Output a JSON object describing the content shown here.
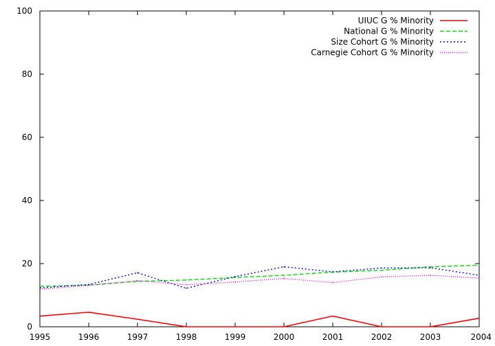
{
  "chart_data": {
    "type": "line",
    "title": "",
    "xlabel": "",
    "ylabel": "",
    "x": [
      1995,
      1996,
      1997,
      1998,
      1999,
      2000,
      2001,
      2002,
      2003,
      2004
    ],
    "xlim": [
      1995,
      2004
    ],
    "ylim": [
      0,
      100
    ],
    "xticks": [
      "1995",
      "1996",
      "1997",
      "1998",
      "1999",
      "2000",
      "2001",
      "2002",
      "2003",
      "2004"
    ],
    "yticks": [
      "0",
      "20",
      "40",
      "60",
      "80",
      "100"
    ],
    "grid": false,
    "legend_position": "top-right",
    "series": [
      {
        "name": "UIUC G % Minority",
        "color": "#ff0000",
        "dash": "solid",
        "values": [
          3.4,
          4.6,
          2.4,
          0,
          0,
          0,
          3.4,
          0,
          0,
          2.7
        ]
      },
      {
        "name": "National G % Minority",
        "color": "#00dd00",
        "dash": "dashed",
        "values": [
          12.8,
          13.2,
          14.4,
          14.8,
          15.6,
          16.3,
          17.3,
          17.9,
          19.0,
          19.5
        ]
      },
      {
        "name": "Size Cohort G % Minority",
        "color": "#0000ee",
        "dash": "dotted",
        "values": [
          12.3,
          13.4,
          17.1,
          12.2,
          15.9,
          19.0,
          17.4,
          18.6,
          18.7,
          16.3
        ]
      },
      {
        "name": "Carnegie Cohort G % Minority",
        "color": "#ff00ff",
        "dash": "fine-dotted",
        "values": [
          11.9,
          13.1,
          14.6,
          13.3,
          14.2,
          15.3,
          14.0,
          15.8,
          16.3,
          15.4
        ]
      }
    ]
  }
}
